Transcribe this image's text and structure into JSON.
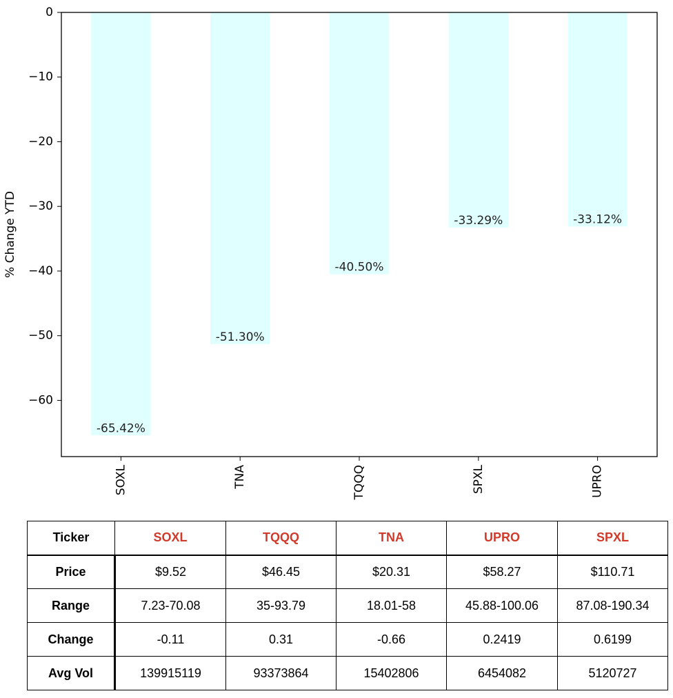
{
  "chart_data": {
    "type": "bar",
    "categories": [
      "SOXL",
      "TNA",
      "TQQQ",
      "SPXL",
      "UPRO"
    ],
    "values": [
      -65.42,
      -51.3,
      -40.5,
      -33.29,
      -33.12
    ],
    "data_labels": [
      "-65.42%",
      "-51.30%",
      "-40.50%",
      "-33.29%",
      "-33.12%"
    ],
    "title": "",
    "xlabel": "",
    "ylabel": "% Change YTD",
    "ylim": [
      -68.7,
      0
    ],
    "yticks": [
      0,
      -10,
      -20,
      -30,
      -40,
      -50,
      -60
    ],
    "ytick_labels": [
      "0",
      "−10",
      "−20",
      "−30",
      "−40",
      "−50",
      "−60"
    ],
    "bar_color": "#e0ffff",
    "grid": false
  },
  "table": {
    "header_label": "Ticker",
    "header_color": "#d03a2b",
    "columns": [
      "SOXL",
      "TQQQ",
      "TNA",
      "UPRO",
      "SPXL"
    ],
    "rows": [
      {
        "label": "Price",
        "values": [
          "$9.52",
          "$46.45",
          "$20.31",
          "$58.27",
          "$110.71"
        ]
      },
      {
        "label": "Range",
        "values": [
          "7.23-70.08",
          "35-93.79",
          "18.01-58",
          "45.88-100.06",
          "87.08-190.34"
        ]
      },
      {
        "label": "Change",
        "values": [
          "-0.11",
          "0.31",
          "-0.66",
          "0.2419",
          "0.6199"
        ]
      },
      {
        "label": "Avg Vol",
        "values": [
          "139915119",
          "93373864",
          "15402806",
          "6454082",
          "5120727"
        ]
      }
    ]
  }
}
